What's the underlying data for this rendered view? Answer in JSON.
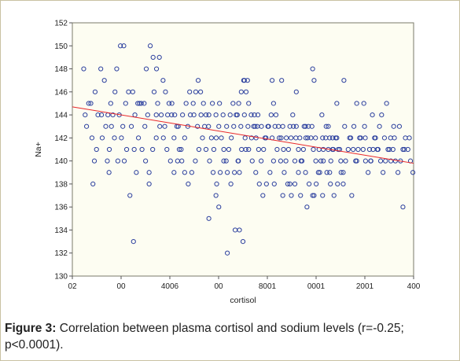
{
  "caption": {
    "label": "Figure 3:",
    "text": " Correlation between plasma cortisol and sodium levels (r=-0.25; p<0.0001)."
  },
  "chart_data": {
    "type": "scatter",
    "title": "",
    "xlabel": "cortisol",
    "ylabel": "Na+",
    "xlim": [
      0,
      2400
    ],
    "ylim": [
      130,
      152
    ],
    "x_tick_labels": [
      "02",
      "00",
      "4006",
      "00",
      "8001",
      "0001",
      "2001",
      "400"
    ],
    "y_ticks": [
      130,
      132,
      134,
      136,
      138,
      140,
      142,
      144,
      146,
      148,
      150,
      152
    ],
    "grid": false,
    "legend": "none",
    "colors": {
      "points": "#2b3f9e",
      "regression": "#e8262a",
      "plot_bg": "#fdfdf2",
      "frame": "#c9c2a2"
    },
    "regression_line": {
      "x": [
        0,
        2400
      ],
      "y": [
        144.7,
        139.8
      ]
    },
    "points": [
      [
        115,
        145
      ],
      [
        138,
        142
      ],
      [
        145,
        138
      ],
      [
        80,
        148
      ],
      [
        100,
        143
      ],
      [
        130,
        145
      ],
      [
        155,
        140
      ],
      [
        210,
        142
      ],
      [
        235,
        143
      ],
      [
        246,
        140
      ],
      [
        258,
        139
      ],
      [
        270,
        145
      ],
      [
        296,
        142
      ],
      [
        312,
        148
      ],
      [
        320,
        140
      ],
      [
        338,
        150
      ],
      [
        362,
        150
      ],
      [
        382,
        141
      ],
      [
        405,
        137
      ],
      [
        425,
        146
      ],
      [
        460,
        145
      ],
      [
        472,
        145
      ],
      [
        485,
        145
      ],
      [
        505,
        145
      ],
      [
        520,
        148
      ],
      [
        548,
        150
      ],
      [
        568,
        149
      ],
      [
        592,
        148
      ],
      [
        612,
        149
      ],
      [
        638,
        147
      ],
      [
        655,
        146
      ],
      [
        680,
        145
      ],
      [
        698,
        144
      ],
      [
        715,
        142
      ],
      [
        735,
        143
      ],
      [
        752,
        141
      ],
      [
        770,
        140
      ],
      [
        790,
        142
      ],
      [
        812,
        143
      ],
      [
        830,
        144
      ],
      [
        850,
        145
      ],
      [
        868,
        146
      ],
      [
        885,
        147
      ],
      [
        902,
        146
      ],
      [
        922,
        145
      ],
      [
        940,
        144
      ],
      [
        958,
        143
      ],
      [
        978,
        142
      ],
      [
        995,
        141
      ],
      [
        1012,
        142
      ],
      [
        1030,
        143
      ],
      [
        1048,
        142
      ],
      [
        1065,
        141
      ],
      [
        1082,
        140
      ],
      [
        1100,
        141
      ],
      [
        1118,
        142
      ],
      [
        1135,
        143
      ],
      [
        1152,
        144
      ],
      [
        1170,
        145
      ],
      [
        1188,
        146
      ],
      [
        1205,
        147
      ],
      [
        1222,
        146
      ],
      [
        1240,
        145
      ],
      [
        1258,
        144
      ],
      [
        1275,
        143
      ],
      [
        1292,
        142
      ],
      [
        1310,
        141
      ],
      [
        1328,
        140
      ],
      [
        1345,
        141
      ],
      [
        1362,
        142
      ],
      [
        1380,
        143
      ],
      [
        1398,
        144
      ],
      [
        1415,
        145
      ],
      [
        1432,
        144
      ],
      [
        1450,
        143
      ],
      [
        1468,
        142
      ],
      [
        1485,
        141
      ],
      [
        1502,
        140
      ],
      [
        1520,
        141
      ],
      [
        1538,
        142
      ],
      [
        1555,
        143
      ],
      [
        1572,
        142
      ],
      [
        1590,
        141
      ],
      [
        1608,
        140
      ],
      [
        1625,
        141
      ],
      [
        1642,
        142
      ],
      [
        1660,
        143
      ],
      [
        1678,
        142
      ],
      [
        1695,
        141
      ],
      [
        1712,
        140
      ],
      [
        1730,
        139
      ],
      [
        1748,
        140
      ],
      [
        1765,
        141
      ],
      [
        1782,
        142
      ],
      [
        1800,
        141
      ],
      [
        1818,
        140
      ],
      [
        1835,
        141
      ],
      [
        1852,
        142
      ],
      [
        1870,
        141
      ],
      [
        1888,
        140
      ],
      [
        1905,
        139
      ],
      [
        1922,
        140
      ],
      [
        1940,
        141
      ],
      [
        1958,
        142
      ],
      [
        1975,
        141
      ],
      [
        1992,
        140
      ],
      [
        2010,
        141
      ],
      [
        2028,
        142
      ],
      [
        2045,
        141
      ],
      [
        2062,
        140
      ],
      [
        2080,
        139
      ],
      [
        2098,
        140
      ],
      [
        2115,
        141
      ],
      [
        2132,
        142
      ],
      [
        2150,
        141
      ],
      [
        2168,
        140
      ],
      [
        2185,
        139
      ],
      [
        2202,
        140
      ],
      [
        2220,
        141
      ],
      [
        2238,
        142
      ],
      [
        2255,
        141
      ],
      [
        2272,
        140
      ],
      [
        2290,
        139
      ],
      [
        2308,
        140
      ],
      [
        2325,
        141
      ],
      [
        2342,
        142
      ],
      [
        2360,
        141
      ],
      [
        2378,
        140
      ],
      [
        2395,
        139
      ],
      [
        160,
        146
      ],
      [
        180,
        144
      ],
      [
        200,
        148
      ],
      [
        225,
        147
      ],
      [
        250,
        144
      ],
      [
        275,
        143
      ],
      [
        300,
        146
      ],
      [
        330,
        144
      ],
      [
        355,
        143
      ],
      [
        375,
        145
      ],
      [
        395,
        146
      ],
      [
        415,
        143
      ],
      [
        440,
        144
      ],
      [
        465,
        142
      ],
      [
        490,
        141
      ],
      [
        515,
        140
      ],
      [
        540,
        139
      ],
      [
        565,
        141
      ],
      [
        590,
        142
      ],
      [
        615,
        143
      ],
      [
        640,
        142
      ],
      [
        665,
        141
      ],
      [
        690,
        140
      ],
      [
        715,
        139
      ],
      [
        740,
        140
      ],
      [
        765,
        141
      ],
      [
        790,
        139
      ],
      [
        815,
        138
      ],
      [
        840,
        139
      ],
      [
        865,
        140
      ],
      [
        890,
        141
      ],
      [
        915,
        142
      ],
      [
        940,
        141
      ],
      [
        965,
        140
      ],
      [
        990,
        139
      ],
      [
        1015,
        138
      ],
      [
        1040,
        139
      ],
      [
        1065,
        140
      ],
      [
        1090,
        139
      ],
      [
        1115,
        138
      ],
      [
        1140,
        139
      ],
      [
        1165,
        140
      ],
      [
        1190,
        141
      ],
      [
        1215,
        142
      ],
      [
        1240,
        141
      ],
      [
        1265,
        140
      ],
      [
        1290,
        139
      ],
      [
        1315,
        138
      ],
      [
        1340,
        137
      ],
      [
        1365,
        138
      ],
      [
        1390,
        139
      ],
      [
        1415,
        140
      ],
      [
        1440,
        141
      ],
      [
        1465,
        140
      ],
      [
        1490,
        139
      ],
      [
        1515,
        138
      ],
      [
        1540,
        137
      ],
      [
        1565,
        138
      ],
      [
        1590,
        139
      ],
      [
        1615,
        140
      ],
      [
        1640,
        139
      ],
      [
        1665,
        138
      ],
      [
        1690,
        137
      ],
      [
        1715,
        138
      ],
      [
        1740,
        139
      ],
      [
        1765,
        140
      ],
      [
        1790,
        139
      ],
      [
        1815,
        138
      ],
      [
        1840,
        137
      ],
      [
        1865,
        138
      ],
      [
        1890,
        139
      ],
      [
        90,
        144
      ],
      [
        170,
        141
      ],
      [
        205,
        144
      ],
      [
        260,
        141
      ],
      [
        285,
        144
      ],
      [
        345,
        142
      ],
      [
        365,
        140
      ],
      [
        435,
        141
      ],
      [
        450,
        139
      ],
      [
        510,
        143
      ],
      [
        530,
        144
      ],
      [
        575,
        146
      ],
      [
        600,
        145
      ],
      [
        625,
        144
      ],
      [
        650,
        143
      ],
      [
        670,
        144
      ],
      [
        700,
        145
      ],
      [
        720,
        144
      ],
      [
        745,
        143
      ],
      [
        775,
        144
      ],
      [
        800,
        145
      ],
      [
        825,
        146
      ],
      [
        855,
        144
      ],
      [
        880,
        143
      ],
      [
        905,
        144
      ],
      [
        930,
        143
      ],
      [
        960,
        144
      ],
      [
        985,
        145
      ],
      [
        1010,
        144
      ],
      [
        1035,
        145
      ],
      [
        1060,
        144
      ],
      [
        1085,
        143
      ],
      [
        1110,
        144
      ],
      [
        1130,
        145
      ],
      [
        1160,
        144
      ],
      [
        1185,
        143
      ],
      [
        1210,
        144
      ],
      [
        1235,
        143
      ],
      [
        1260,
        142
      ],
      [
        1285,
        143
      ],
      [
        1305,
        144
      ],
      [
        1330,
        143
      ],
      [
        1355,
        142
      ],
      [
        1375,
        143
      ],
      [
        1405,
        142
      ],
      [
        1425,
        143
      ],
      [
        1455,
        142
      ],
      [
        1480,
        143
      ],
      [
        1505,
        142
      ],
      [
        1530,
        143
      ],
      [
        1550,
        144
      ],
      [
        1575,
        143
      ],
      [
        1600,
        142
      ],
      [
        1630,
        143
      ],
      [
        1655,
        142
      ],
      [
        1685,
        143
      ],
      [
        1710,
        142
      ],
      [
        1735,
        141
      ],
      [
        1760,
        142
      ],
      [
        1785,
        143
      ],
      [
        1810,
        142
      ],
      [
        1830,
        141
      ],
      [
        1860,
        142
      ],
      [
        1880,
        141
      ],
      [
        1915,
        143
      ],
      [
        1950,
        142
      ],
      [
        1980,
        143
      ],
      [
        2020,
        142
      ],
      [
        2055,
        143
      ],
      [
        2090,
        141
      ],
      [
        2125,
        142
      ],
      [
        2160,
        143
      ],
      [
        2195,
        142
      ],
      [
        2230,
        141
      ],
      [
        2265,
        142
      ],
      [
        2300,
        143
      ],
      [
        2335,
        141
      ],
      [
        2370,
        142
      ],
      [
        1210,
        147
      ],
      [
        1232,
        147
      ],
      [
        1168,
        140
      ],
      [
        1175,
        139
      ],
      [
        1300,
        143
      ],
      [
        1405,
        147
      ],
      [
        1472,
        147
      ],
      [
        1530,
        138
      ],
      [
        1565,
        140
      ],
      [
        1220,
        141
      ],
      [
        1280,
        144
      ],
      [
        1690,
        148
      ],
      [
        1700,
        147
      ],
      [
        1575,
        146
      ],
      [
        1640,
        143
      ],
      [
        1755,
        144
      ],
      [
        1830,
        142
      ],
      [
        1800,
        143
      ],
      [
        1860,
        145
      ],
      [
        1910,
        147
      ],
      [
        2000,
        145
      ],
      [
        2060,
        142
      ],
      [
        2110,
        144
      ],
      [
        2050,
        145
      ],
      [
        2100,
        140
      ],
      [
        2175,
        144
      ],
      [
        2145,
        141
      ],
      [
        2210,
        145
      ],
      [
        2325,
        136
      ],
      [
        2240,
        140
      ],
      [
        2260,
        143
      ],
      [
        430,
        133
      ],
      [
        590,
        144
      ],
      [
        540,
        138
      ],
      [
        960,
        135
      ],
      [
        1010,
        137
      ],
      [
        1030,
        136
      ],
      [
        1090,
        132
      ],
      [
        1145,
        134
      ],
      [
        1175,
        134
      ],
      [
        1200,
        133
      ],
      [
        1420,
        138
      ],
      [
        1480,
        137
      ],
      [
        1605,
        137
      ],
      [
        1650,
        136
      ],
      [
        1700,
        137
      ],
      [
        1760,
        137
      ],
      [
        1905,
        138
      ],
      [
        1965,
        137
      ],
      [
        2000,
        140
      ],
      [
        1810,
        139
      ]
    ]
  }
}
